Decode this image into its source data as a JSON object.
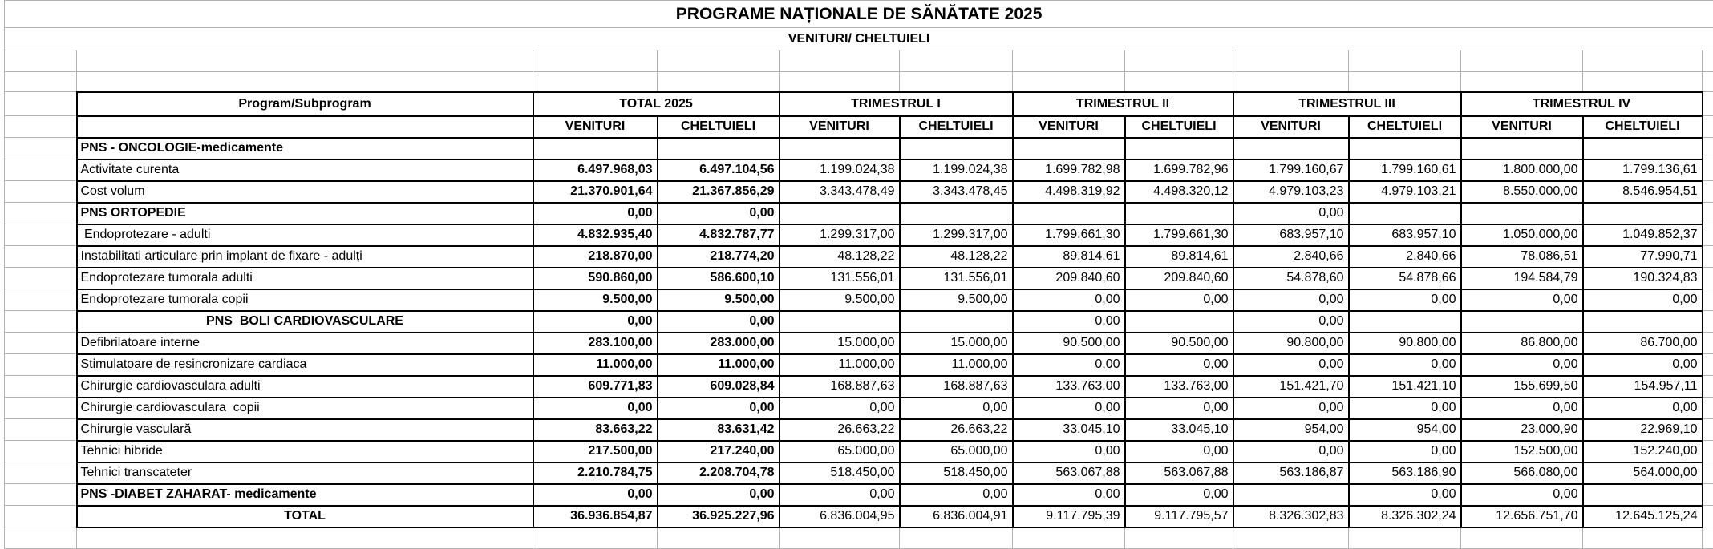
{
  "title": "PROGRAME NAȚIONALE DE SĂNĂTATE 2025",
  "subtitle": "VENITURI/ CHELTUIELI",
  "table": {
    "program_header": "Program/Subprogram",
    "group_headers": [
      "TOTAL 2025",
      "TRIMESTRUL I",
      "TRIMESTRUL II",
      "TRIMESTRUL III",
      "TRIMESTRUL IV"
    ],
    "sub_headers": [
      "VENITURI",
      "CHELTUIELI"
    ],
    "rows": [
      {
        "label": "PNS - ONCOLOGIE-medicamente",
        "style": "section",
        "values": [
          "",
          "",
          "",
          "",
          "",
          "",
          "",
          "",
          "",
          ""
        ]
      },
      {
        "label": "Activitate curenta",
        "style": "normal",
        "values": [
          "6.497.968,03",
          "6.497.104,56",
          "1.199.024,38",
          "1.199.024,38",
          "1.699.782,98",
          "1.699.782,96",
          "1.799.160,67",
          "1.799.160,61",
          "1.800.000,00",
          "1.799.136,61"
        ]
      },
      {
        "label": "Cost volum",
        "style": "normal",
        "values": [
          "21.370.901,64",
          "21.367.856,29",
          "3.343.478,49",
          "3.343.478,45",
          "4.498.319,92",
          "4.498.320,12",
          "4.979.103,23",
          "4.979.103,21",
          "8.550.000,00",
          "8.546.954,51"
        ]
      },
      {
        "label": "PNS ORTOPEDIE",
        "style": "section",
        "values": [
          "0,00",
          "0,00",
          "",
          "",
          "",
          "",
          "0,00",
          "",
          "",
          ""
        ]
      },
      {
        "label": " Endoprotezare - adulti",
        "style": "normal",
        "values": [
          "4.832.935,40",
          "4.832.787,77",
          "1.299.317,00",
          "1.299.317,00",
          "1.799.661,30",
          "1.799.661,30",
          "683.957,10",
          "683.957,10",
          "1.050.000,00",
          "1.049.852,37"
        ]
      },
      {
        "label": "Instabilitati articulare prin implant de fixare - adulți",
        "style": "normal",
        "values": [
          "218.870,00",
          "218.774,20",
          "48.128,22",
          "48.128,22",
          "89.814,61",
          "89.814,61",
          "2.840,66",
          "2.840,66",
          "78.086,51",
          "77.990,71"
        ]
      },
      {
        "label": "Endoprotezare tumorala adulti",
        "style": "normal",
        "values": [
          "590.860,00",
          "586.600,10",
          "131.556,01",
          "131.556,01",
          "209.840,60",
          "209.840,60",
          "54.878,60",
          "54.878,66",
          "194.584,79",
          "190.324,83"
        ]
      },
      {
        "label": "Endoprotezare tumorala copii",
        "style": "normal",
        "values": [
          "9.500,00",
          "9.500,00",
          "9.500,00",
          "9.500,00",
          "0,00",
          "0,00",
          "0,00",
          "0,00",
          "0,00",
          "0,00"
        ]
      },
      {
        "label": "PNS  BOLI CARDIOVASCULARE",
        "style": "section-center",
        "values": [
          "0,00",
          "0,00",
          "",
          "",
          "0,00",
          "",
          "0,00",
          "",
          "",
          ""
        ]
      },
      {
        "label": "Defibrilatoare interne",
        "style": "normal",
        "values": [
          "283.100,00",
          "283.000,00",
          "15.000,00",
          "15.000,00",
          "90.500,00",
          "90.500,00",
          "90.800,00",
          "90.800,00",
          "86.800,00",
          "86.700,00"
        ]
      },
      {
        "label": "Stimulatoare de resincronizare cardiaca",
        "style": "normal",
        "values": [
          "11.000,00",
          "11.000,00",
          "11.000,00",
          "11.000,00",
          "0,00",
          "0,00",
          "0,00",
          "0,00",
          "0,00",
          "0,00"
        ]
      },
      {
        "label": "Chirurgie cardiovasculara adulti",
        "style": "normal",
        "values": [
          "609.771,83",
          "609.028,84",
          "168.887,63",
          "168.887,63",
          "133.763,00",
          "133.763,00",
          "151.421,70",
          "151.421,10",
          "155.699,50",
          "154.957,11"
        ]
      },
      {
        "label": "Chirurgie cardiovasculara  copii",
        "style": "normal",
        "values": [
          "0,00",
          "0,00",
          "0,00",
          "0,00",
          "0,00",
          "0,00",
          "0,00",
          "0,00",
          "0,00",
          "0,00"
        ]
      },
      {
        "label": "Chirurgie vasculară",
        "style": "normal",
        "values": [
          "83.663,22",
          "83.631,42",
          "26.663,22",
          "26.663,22",
          "33.045,10",
          "33.045,10",
          "954,00",
          "954,00",
          "23.000,90",
          "22.969,10"
        ]
      },
      {
        "label": "Tehnici hibride",
        "style": "normal",
        "values": [
          "217.500,00",
          "217.240,00",
          "65.000,00",
          "65.000,00",
          "0,00",
          "0,00",
          "0,00",
          "0,00",
          "152.500,00",
          "152.240,00"
        ]
      },
      {
        "label": "Tehnici transcateter",
        "style": "normal",
        "values": [
          "2.210.784,75",
          "2.208.704,78",
          "518.450,00",
          "518.450,00",
          "563.067,88",
          "563.067,88",
          "563.186,87",
          "563.186,90",
          "566.080,00",
          "564.000,00"
        ]
      },
      {
        "label": "PNS -DIABET ZAHARAT- medicamente",
        "style": "section",
        "values": [
          "0,00",
          "0,00",
          "0,00",
          "0,00",
          "0,00",
          "0,00",
          "",
          "0,00",
          "0,00",
          ""
        ]
      },
      {
        "label": "TOTAL",
        "style": "total",
        "values": [
          "36.936.854,87",
          "36.925.227,96",
          "6.836.004,95",
          "6.836.004,91",
          "9.117.795,39",
          "9.117.795,57",
          "8.326.302,83",
          "8.326.302,24",
          "12.656.751,70",
          "12.645.125,24"
        ]
      }
    ]
  }
}
